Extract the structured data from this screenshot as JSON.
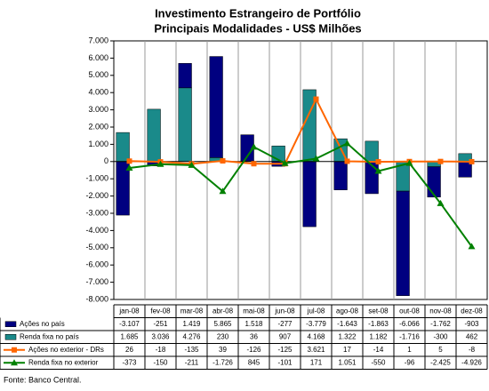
{
  "chart_data": {
    "type": "bar",
    "title": "Investimento Estrangeiro de Portfólio",
    "subtitle": "Principais Modalidades - US$ Milhões",
    "categories": [
      "jan-08",
      "fev-08",
      "mar-08",
      "abr-08",
      "mai-08",
      "jun-08",
      "jul-08",
      "ago-08",
      "set-08",
      "out-08",
      "nov-08",
      "dez-08"
    ],
    "series": [
      {
        "name": "Ações no país",
        "type": "bar",
        "color": "#000080",
        "values": [
          -3107,
          -251,
          1419,
          5865,
          1518,
          -277,
          -3779,
          -1643,
          -1863,
          -6066,
          -1762,
          -903
        ],
        "value_labels": [
          "-3.107",
          "-251",
          "1.419",
          "5.865",
          "1.518",
          "-277",
          "-3.779",
          "-1.643",
          "-1.863",
          "-6.066",
          "-1.762",
          "-903"
        ]
      },
      {
        "name": "Renda fixa no país",
        "type": "bar",
        "color": "#1a8a8a",
        "values": [
          1685,
          3036,
          4276,
          230,
          36,
          907,
          4168,
          1322,
          1182,
          -1716,
          -300,
          462
        ],
        "value_labels": [
          "1.685",
          "3.036",
          "4.276",
          "230",
          "36",
          "907",
          "4.168",
          "1.322",
          "1.182",
          "-1.716",
          "-300",
          "462"
        ]
      },
      {
        "name": "Ações no exterior - DRs",
        "type": "line",
        "marker": "square",
        "color": "#ff6600",
        "values": [
          26,
          -18,
          -135,
          39,
          -126,
          -125,
          3621,
          17,
          -14,
          1,
          5,
          -8
        ],
        "value_labels": [
          "26",
          "-18",
          "-135",
          "39",
          "-126",
          "-125",
          "3.621",
          "17",
          "-14",
          "1",
          "5",
          "-8"
        ]
      },
      {
        "name": "Renda fixa no exterior",
        "type": "line",
        "marker": "triangle",
        "color": "#008000",
        "values": [
          -373,
          -150,
          -211,
          -1726,
          845,
          -101,
          171,
          1051,
          -550,
          -96,
          -2425,
          -4926
        ],
        "value_labels": [
          "-373",
          "-150",
          "-211",
          "-1.726",
          "845",
          "-101",
          "171",
          "1.051",
          "-550",
          "-96",
          "-2.425",
          "-4.926"
        ]
      }
    ],
    "stack_order": [
      1,
      0
    ],
    "ylim": [
      -8000,
      7000
    ],
    "yticks": [
      {
        "value": -8000,
        "label": "-8.000"
      },
      {
        "value": -7000,
        "label": "-7.000"
      },
      {
        "value": -6000,
        "label": "-6.000"
      },
      {
        "value": -5000,
        "label": "-5.000"
      },
      {
        "value": -4000,
        "label": "-4.000"
      },
      {
        "value": -3000,
        "label": "-3.000"
      },
      {
        "value": -2000,
        "label": "-2.000"
      },
      {
        "value": -1000,
        "label": "-1.000"
      },
      0,
      {
        "value": 1000,
        "label": "1.000"
      },
      {
        "value": 2000,
        "label": "2.000"
      },
      {
        "value": 3000,
        "label": "3.000"
      },
      {
        "value": 4000,
        "label": "4.000"
      },
      {
        "value": 5000,
        "label": "5.000"
      },
      {
        "value": 6000,
        "label": "6.000"
      },
      {
        "value": 7000,
        "label": "7.000"
      }
    ],
    "note": "Fonte: Banco Central."
  }
}
